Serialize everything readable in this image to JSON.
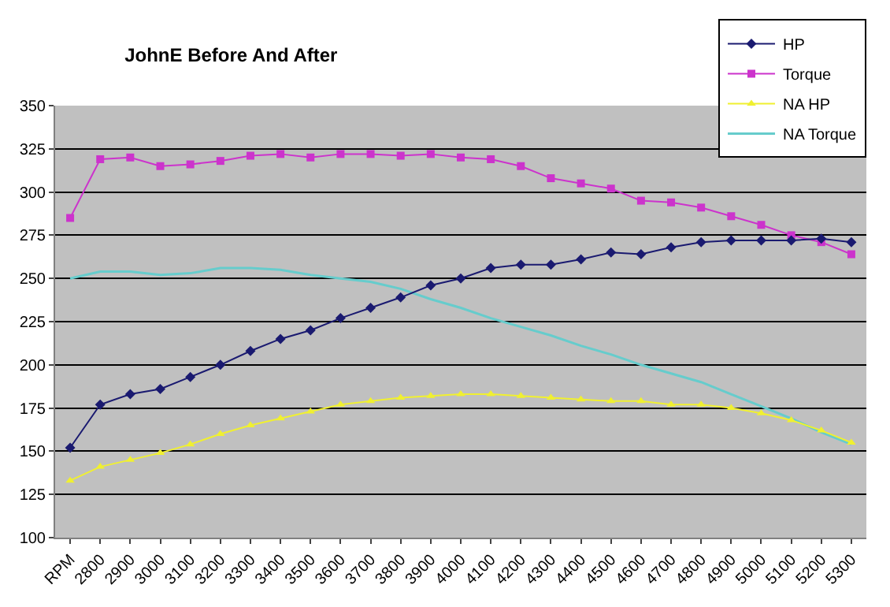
{
  "chart_data": {
    "type": "line",
    "title": "JohnE Before And After",
    "categories": [
      "RPM",
      "2800",
      "2900",
      "3000",
      "3100",
      "3200",
      "3300",
      "3400",
      "3500",
      "3600",
      "3700",
      "3800",
      "3900",
      "4000",
      "4100",
      "4200",
      "4300",
      "4400",
      "4500",
      "4600",
      "4700",
      "4800",
      "4900",
      "5000",
      "5100",
      "5200",
      "5300"
    ],
    "series": [
      {
        "name": "HP",
        "color": "#1a1a70",
        "marker": "diamond",
        "values": [
          152,
          177,
          183,
          186,
          193,
          200,
          208,
          215,
          220,
          227,
          233,
          239,
          246,
          250,
          256,
          258,
          258,
          261,
          265,
          264,
          268,
          271,
          272,
          272,
          272,
          273,
          271
        ]
      },
      {
        "name": "Torque",
        "color": "#cc33cc",
        "marker": "square",
        "values": [
          285,
          319,
          320,
          315,
          316,
          318,
          321,
          322,
          320,
          322,
          322,
          321,
          322,
          320,
          319,
          315,
          308,
          305,
          302,
          295,
          294,
          291,
          286,
          281,
          275,
          271,
          264
        ]
      },
      {
        "name": "NA HP",
        "color": "#f0f030",
        "marker": "triangle",
        "values": [
          133,
          141,
          145,
          149,
          154,
          160,
          165,
          169,
          173,
          177,
          179,
          181,
          182,
          183,
          183,
          182,
          181,
          180,
          179,
          179,
          177,
          177,
          175,
          172,
          168,
          162,
          155
        ]
      },
      {
        "name": "NA Torque",
        "color": "#66cccc",
        "marker": "none",
        "values": [
          250,
          254,
          254,
          252,
          253,
          256,
          256,
          255,
          252,
          250,
          248,
          244,
          238,
          233,
          227,
          222,
          217,
          211,
          206,
          200,
          195,
          190,
          183,
          176,
          169,
          161,
          154
        ]
      }
    ],
    "ylim": [
      100,
      350
    ],
    "yticks": [
      100,
      125,
      150,
      175,
      200,
      225,
      250,
      275,
      300,
      325,
      350
    ],
    "grid": "y",
    "legend": "top right"
  }
}
